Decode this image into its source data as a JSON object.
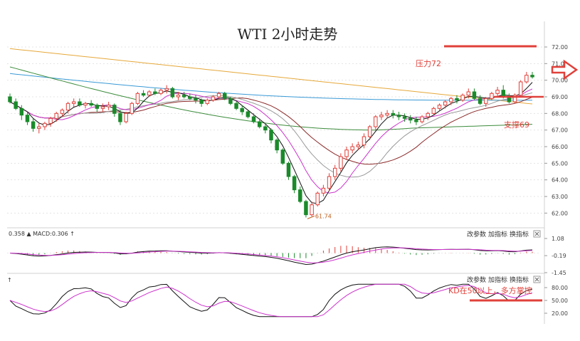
{
  "chart_data": [
    {
      "type": "candlestick",
      "title": "WTI 2小时走势",
      "ylim": [
        61.2,
        73.2
      ],
      "yticks": [
        "72.00",
        "71.00",
        "70.00",
        "69.00",
        "68.00",
        "67.00",
        "66.00",
        "65.00",
        "64.00",
        "63.00",
        "62.00"
      ],
      "candles": [
        [
          69.0,
          69.2,
          68.6,
          68.7
        ],
        [
          68.7,
          68.9,
          68.2,
          68.3
        ],
        [
          68.3,
          68.5,
          67.6,
          67.9
        ],
        [
          67.9,
          68.1,
          67.3,
          67.5
        ],
        [
          67.5,
          67.7,
          66.9,
          67.1
        ],
        [
          67.1,
          67.4,
          66.8,
          67.2
        ],
        [
          67.2,
          67.5,
          67.0,
          67.4
        ],
        [
          67.4,
          67.8,
          67.2,
          67.7
        ],
        [
          67.7,
          68.1,
          67.5,
          68.0
        ],
        [
          68.0,
          68.3,
          67.8,
          68.2
        ],
        [
          68.2,
          68.7,
          68.0,
          68.6
        ],
        [
          68.6,
          68.9,
          68.4,
          68.7
        ],
        [
          68.7,
          68.9,
          68.4,
          68.5
        ],
        [
          68.5,
          68.7,
          68.3,
          68.6
        ],
        [
          68.6,
          68.8,
          68.4,
          68.5
        ],
        [
          68.5,
          68.6,
          68.1,
          68.3
        ],
        [
          68.3,
          68.6,
          68.1,
          68.4
        ],
        [
          68.4,
          68.7,
          68.2,
          68.5
        ],
        [
          68.5,
          68.6,
          67.8,
          68.0
        ],
        [
          68.0,
          68.2,
          67.3,
          67.5
        ],
        [
          67.5,
          68.1,
          67.4,
          68.0
        ],
        [
          68.0,
          68.7,
          67.9,
          68.6
        ],
        [
          68.6,
          69.3,
          68.5,
          69.2
        ],
        [
          69.2,
          69.4,
          69.0,
          69.1
        ],
        [
          69.1,
          69.4,
          69.0,
          69.3
        ],
        [
          69.3,
          69.5,
          69.1,
          69.2
        ],
        [
          69.2,
          69.5,
          69.1,
          69.4
        ],
        [
          69.4,
          69.7,
          69.2,
          69.5
        ],
        [
          69.5,
          69.6,
          68.9,
          69.0
        ],
        [
          69.0,
          69.3,
          68.8,
          69.1
        ],
        [
          69.1,
          69.3,
          68.9,
          69.0
        ],
        [
          69.0,
          69.2,
          68.8,
          68.9
        ],
        [
          68.9,
          69.1,
          68.6,
          68.8
        ],
        [
          68.8,
          68.9,
          68.4,
          68.6
        ],
        [
          68.6,
          68.9,
          68.5,
          68.8
        ],
        [
          68.8,
          69.1,
          68.7,
          69.0
        ],
        [
          69.0,
          69.3,
          68.9,
          69.2
        ],
        [
          69.2,
          69.3,
          68.8,
          68.9
        ],
        [
          68.9,
          69.0,
          68.5,
          68.6
        ],
        [
          68.6,
          68.7,
          68.2,
          68.3
        ],
        [
          68.3,
          68.5,
          67.9,
          68.1
        ],
        [
          68.1,
          68.2,
          67.7,
          67.8
        ],
        [
          67.8,
          68.0,
          67.4,
          67.5
        ],
        [
          67.5,
          67.7,
          67.1,
          67.2
        ],
        [
          67.2,
          67.4,
          66.8,
          67.0
        ],
        [
          67.0,
          67.1,
          66.2,
          66.4
        ],
        [
          66.4,
          66.5,
          65.6,
          65.8
        ],
        [
          65.8,
          65.9,
          64.9,
          65.0
        ],
        [
          65.0,
          65.1,
          64.0,
          64.2
        ],
        [
          64.2,
          64.3,
          63.2,
          63.4
        ],
        [
          63.4,
          63.6,
          62.6,
          62.7
        ],
        [
          62.7,
          62.8,
          61.74,
          61.9
        ],
        [
          61.9,
          62.7,
          61.8,
          62.5
        ],
        [
          62.5,
          63.3,
          62.4,
          63.2
        ],
        [
          63.2,
          63.7,
          63.0,
          63.5
        ],
        [
          63.5,
          64.4,
          63.3,
          64.2
        ],
        [
          64.2,
          64.9,
          64.0,
          64.7
        ],
        [
          64.7,
          65.6,
          64.5,
          65.4
        ],
        [
          65.4,
          66.0,
          65.2,
          65.8
        ],
        [
          65.8,
          66.2,
          65.6,
          66.0
        ],
        [
          66.0,
          66.3,
          65.8,
          66.1
        ],
        [
          66.1,
          66.8,
          65.9,
          66.6
        ],
        [
          66.6,
          67.3,
          66.4,
          67.2
        ],
        [
          67.2,
          67.9,
          67.0,
          67.8
        ],
        [
          67.8,
          68.1,
          67.6,
          67.9
        ],
        [
          67.9,
          68.2,
          67.7,
          68.0
        ],
        [
          68.0,
          68.2,
          67.7,
          67.9
        ],
        [
          67.9,
          68.1,
          67.6,
          67.8
        ],
        [
          67.8,
          68.0,
          67.5,
          67.7
        ],
        [
          67.7,
          67.9,
          67.4,
          67.6
        ],
        [
          67.6,
          67.8,
          67.3,
          67.5
        ],
        [
          67.5,
          67.9,
          67.4,
          67.8
        ],
        [
          67.8,
          68.1,
          67.6,
          68.0
        ],
        [
          68.0,
          68.4,
          67.9,
          68.3
        ],
        [
          68.3,
          68.6,
          68.2,
          68.5
        ],
        [
          68.5,
          68.8,
          68.3,
          68.7
        ],
        [
          68.7,
          69.0,
          68.5,
          68.9
        ],
        [
          68.9,
          69.1,
          68.6,
          68.8
        ],
        [
          68.8,
          69.2,
          68.7,
          69.1
        ],
        [
          69.1,
          69.5,
          68.9,
          69.3
        ],
        [
          69.3,
          69.5,
          68.8,
          68.9
        ],
        [
          68.9,
          69.1,
          68.5,
          68.6
        ],
        [
          68.6,
          69.0,
          68.4,
          68.9
        ],
        [
          68.9,
          69.3,
          68.8,
          69.2
        ],
        [
          69.2,
          69.6,
          69.0,
          69.4
        ],
        [
          69.4,
          69.7,
          68.9,
          69.0
        ],
        [
          69.0,
          69.2,
          68.6,
          68.7
        ],
        [
          68.7,
          69.2,
          68.6,
          69.1
        ],
        [
          69.1,
          70.0,
          69.0,
          69.9
        ],
        [
          69.9,
          70.5,
          69.8,
          70.3
        ],
        [
          70.3,
          70.5,
          70.1,
          70.2
        ]
      ],
      "annotations": {
        "low_label": "61.74",
        "resistance_label": "压力72",
        "resistance_value": 72,
        "support_label": "支撑69",
        "support_value": 69
      }
    },
    {
      "type": "macd",
      "header": "0.358 ▲ MACD:0.306 ↑",
      "yticks": [
        "1.08",
        "-0.19",
        "-1.45"
      ],
      "menu": [
        "改参数",
        "加指标",
        "换指标"
      ]
    },
    {
      "type": "kdj",
      "header": "↑",
      "yticks": [
        "80.00",
        "50.00",
        "20.00"
      ],
      "menu": [
        "改参数",
        "加指标",
        "换指标"
      ],
      "annotation": "KD在50以上，多方掌控",
      "level": 50
    }
  ],
  "colors": {
    "up": "#e0403a",
    "down": "#1a8a2a",
    "accent_red": "#e0403a",
    "ma_orange": "#e6a83a",
    "ma_blue": "#3a9ad6",
    "ma_green": "#3c8c3c",
    "ma_brown": "#8c2a2a",
    "ma_magenta": "#cc33cc",
    "ma_gray": "#999999",
    "ma_black": "#111111"
  },
  "icons": {
    "arrow": "outline-right-arrow-icon",
    "close": "close-icon"
  }
}
